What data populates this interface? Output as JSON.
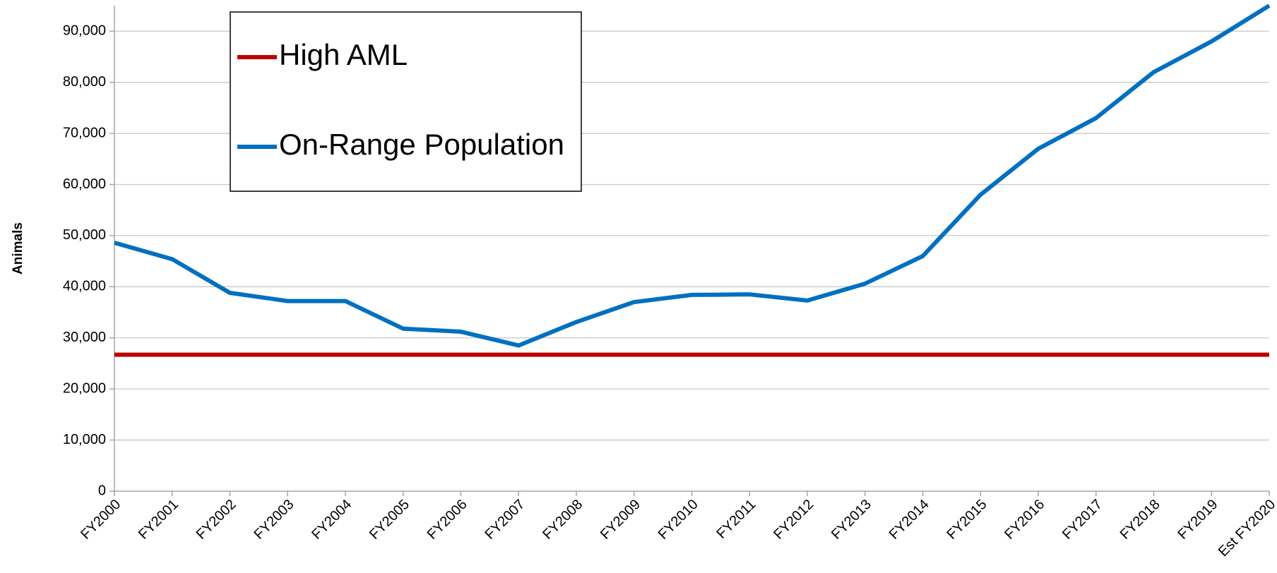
{
  "chart_data": {
    "type": "line",
    "y_label": "Animals",
    "categories": [
      "FY2000",
      "FY2001",
      "FY2002",
      "FY2003",
      "FY2004",
      "FY2005",
      "FY2006",
      "FY2007",
      "FY2008",
      "FY2009",
      "FY2010",
      "FY2011",
      "FY2012",
      "FY2013",
      "FY2014",
      "FY2015",
      "FY2016",
      "FY2017",
      "FY2018",
      "FY2019",
      "Est FY2020"
    ],
    "series": [
      {
        "name": "High AML",
        "color": "#c00000",
        "values": [
          26700,
          26700,
          26700,
          26700,
          26700,
          26700,
          26700,
          26700,
          26700,
          26700,
          26700,
          26700,
          26700,
          26700,
          26700,
          26700,
          26700,
          26700,
          26700,
          26700,
          26700
        ]
      },
      {
        "name": "On-Range Population",
        "color": "#0070c0",
        "values": [
          48600,
          45400,
          38800,
          37200,
          37200,
          31800,
          31200,
          28500,
          33100,
          37000,
          38400,
          38500,
          37300,
          40600,
          46000,
          58000,
          67000,
          73000,
          82000,
          88000,
          95000
        ]
      }
    ],
    "ylim": [
      0,
      95000
    ],
    "yticks": [
      0,
      {
        "value": 10000,
        "label": "10,000"
      },
      {
        "value": 20000,
        "label": "20,000"
      },
      {
        "value": 30000,
        "label": "30,000"
      },
      {
        "value": 40000,
        "label": "40,000"
      },
      {
        "value": 50000,
        "label": "50,000"
      },
      {
        "value": 60000,
        "label": "60,000"
      },
      {
        "value": 70000,
        "label": "70,000"
      },
      {
        "value": 80000,
        "label": "80,000"
      },
      {
        "value": 90000,
        "label": "90,000"
      }
    ],
    "grid": true,
    "legend": "upper left"
  }
}
